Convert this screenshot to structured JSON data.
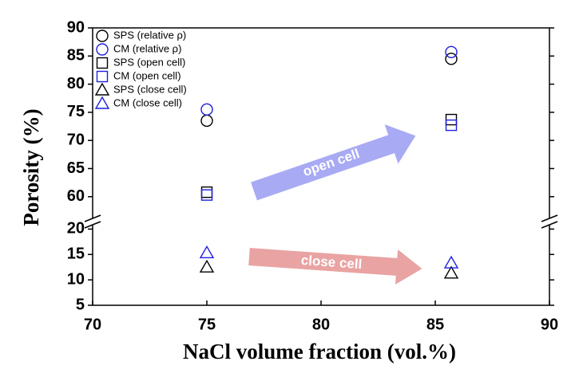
{
  "chart_data": {
    "type": "scatter",
    "x_label": "NaCl volume fraction (vol.%)",
    "y_label": "Porosity (%)",
    "xlim": [
      70,
      90
    ],
    "xticks": [
      70,
      75,
      80,
      85,
      90
    ],
    "y_segments": [
      {
        "ylim": [
          56,
          90
        ],
        "yticks": [
          60,
          65,
          70,
          75,
          80,
          85,
          90
        ]
      },
      {
        "ylim": [
          5,
          21
        ],
        "yticks": [
          5,
          10,
          15,
          20
        ]
      }
    ],
    "series": [
      {
        "name": "SPS (relative ρ)",
        "color": "#000000",
        "marker": "circle",
        "x": [
          75,
          85.7
        ],
        "values": [
          73.5,
          84.5
        ]
      },
      {
        "name": "CM (relative ρ)",
        "color": "#1f1fe0",
        "marker": "circle",
        "x": [
          75,
          85.7
        ],
        "values": [
          75.5,
          85.7
        ]
      },
      {
        "name": "SPS (open cell)",
        "color": "#000000",
        "marker": "square",
        "x": [
          75,
          85.7
        ],
        "values": [
          60.8,
          73.7
        ]
      },
      {
        "name": "CM (open cell)",
        "color": "#1f1fe0",
        "marker": "square",
        "x": [
          75,
          85.7
        ],
        "values": [
          60.3,
          72.7
        ]
      },
      {
        "name": "SPS (close cell)",
        "color": "#000000",
        "marker": "triangle",
        "x": [
          75,
          85.7
        ],
        "values": [
          12.5,
          11.3
        ]
      },
      {
        "name": "CM (close cell)",
        "color": "#1f1fe0",
        "marker": "triangle",
        "x": [
          75,
          85.7
        ],
        "values": [
          15.3,
          13.3
        ]
      }
    ],
    "annotations": [
      "open cell",
      "close cell"
    ]
  }
}
